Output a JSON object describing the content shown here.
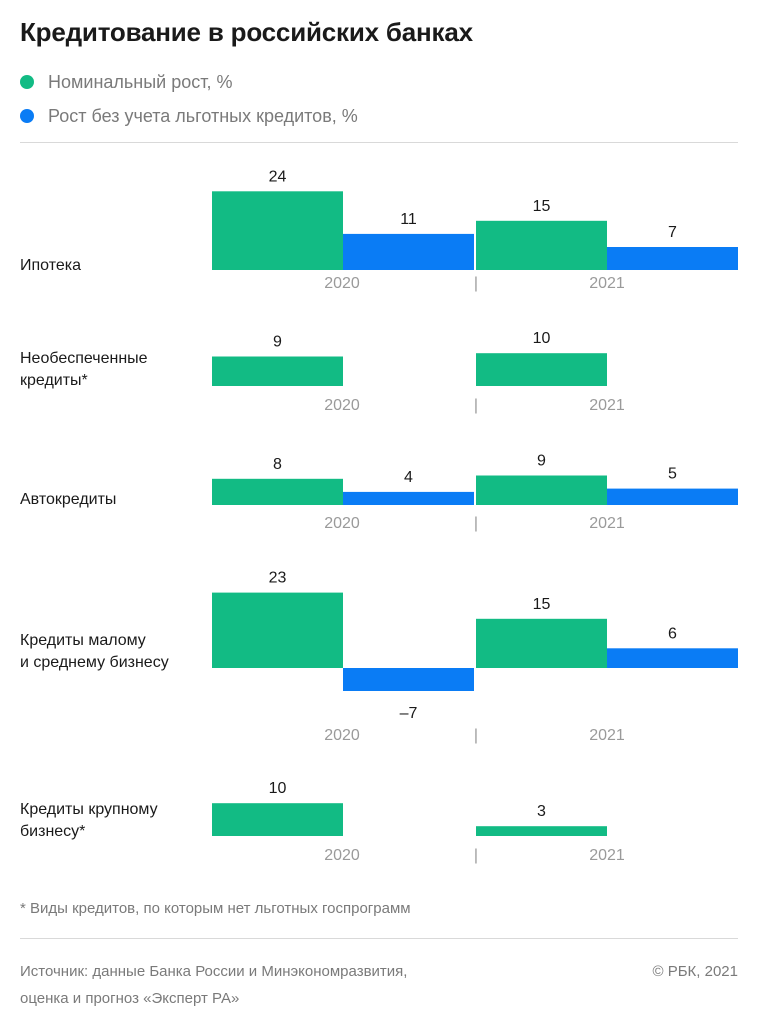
{
  "title": "Кредитование в российских банках",
  "legend": [
    {
      "label": "Номинальный рост, %",
      "color": "#12bb84"
    },
    {
      "label": "Рост без учета льготных кредитов, %",
      "color": "#0a7cf5"
    }
  ],
  "footnote": "* Виды кредитов, по которым нет льготных госпрограмм",
  "source": "Источник: данные Банка России и Минэкономразвития,\nоценка и прогноз «Эксперт РА»",
  "copyright": "© РБК, 2021",
  "chart_data": {
    "type": "bar",
    "x": [
      "2020",
      "2021"
    ],
    "separator": "|",
    "groups": [
      {
        "label": "Ипотека",
        "nominal": [
          24,
          15
        ],
        "adjusted": [
          11,
          7
        ]
      },
      {
        "label": "Необеспеченные\nкредиты*",
        "nominal": [
          9,
          10
        ],
        "adjusted": [
          null,
          null
        ]
      },
      {
        "label": "Автокредиты",
        "nominal": [
          8,
          9
        ],
        "adjusted": [
          4,
          5
        ]
      },
      {
        "label": "Кредиты малому\nи среднему бизнесу",
        "nominal": [
          23,
          15
        ],
        "adjusted": [
          -7,
          6
        ]
      },
      {
        "label": "Кредиты крупному\nбизнесу*",
        "nominal": [
          10,
          3
        ],
        "adjusted": [
          null,
          null
        ]
      }
    ],
    "value_labels": {
      "Ипотека": [
        "24",
        "11",
        "15",
        "7"
      ],
      "Необеспеченные": [
        "9",
        "10"
      ],
      "Автокредиты": [
        "8",
        "4",
        "9",
        "5"
      ],
      "МСБ": [
        "23",
        "–7",
        "15",
        "6"
      ],
      "Крупный": [
        "10",
        "3"
      ]
    }
  }
}
